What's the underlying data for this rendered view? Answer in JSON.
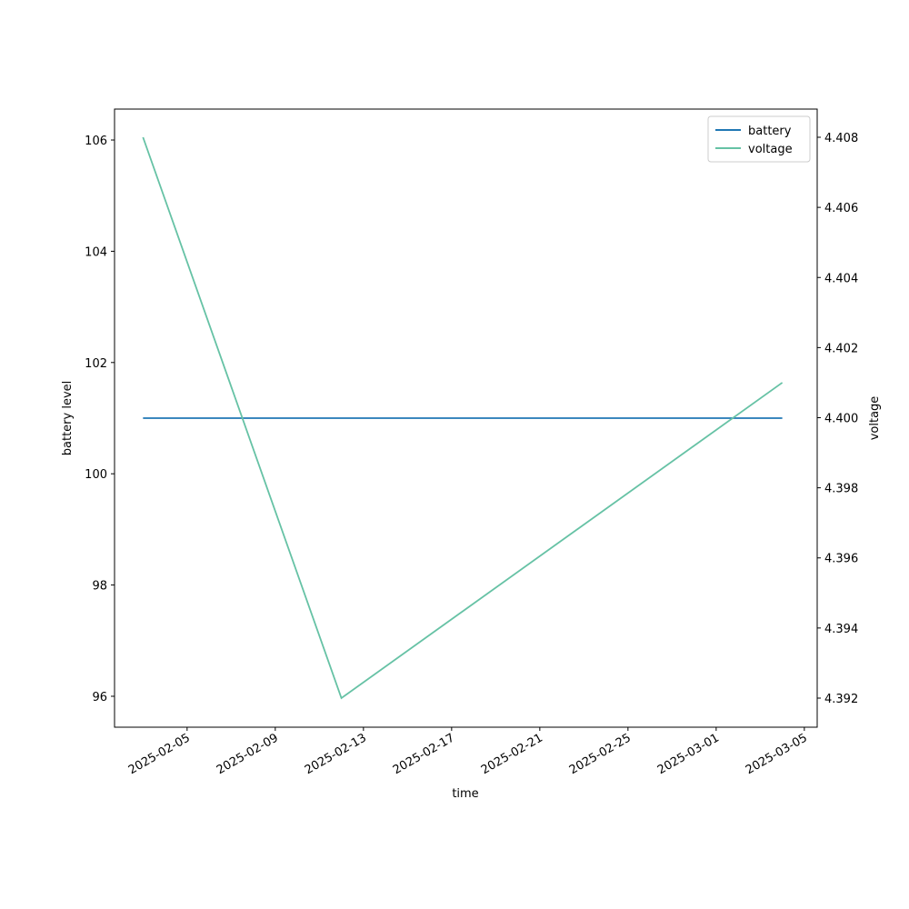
{
  "chart_data": {
    "type": "line",
    "x_label": "time",
    "y_label": "battery level",
    "y2_label": "voltage",
    "x": [
      "2025-02-03",
      "2025-02-12",
      "2025-03-04"
    ],
    "series": [
      {
        "name": "battery",
        "color": "#1f77b4",
        "values": [
          101,
          101,
          101
        ]
      },
      {
        "name": "voltage",
        "color": "#66c2a5",
        "axis": "y2",
        "values": [
          4.408,
          4.392,
          4.401
        ]
      }
    ],
    "xlim": [
      "2025-02-01T17:00",
      "2025-03-05T14:00"
    ],
    "xticks": [
      "2025-02-05",
      "2025-02-09",
      "2025-02-13",
      "2025-02-17",
      "2025-02-21",
      "2025-02-25",
      "2025-03-01",
      "2025-03-05"
    ],
    "ylim": [
      95.444,
      106.556
    ],
    "yticks": [
      96,
      98,
      100,
      102,
      104,
      106
    ],
    "y2lim": [
      4.39117,
      4.408804
    ],
    "y2ticks": [
      4.392,
      4.394,
      4.396,
      4.398,
      {
        "value": 4.4,
        "label": "4.400"
      },
      4.402,
      4.404,
      4.406,
      4.408
    ],
    "legend": "upper right"
  }
}
